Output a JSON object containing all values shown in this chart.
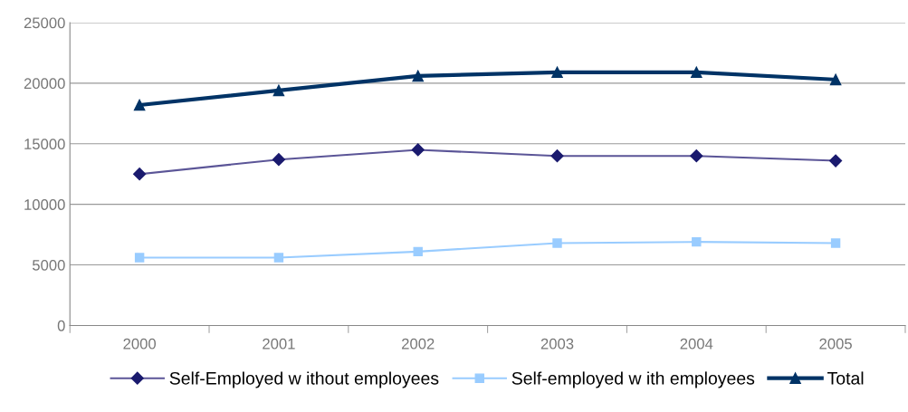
{
  "chart_data": {
    "type": "line",
    "categories": [
      "2000",
      "2001",
      "2002",
      "2003",
      "2004",
      "2005"
    ],
    "series": [
      {
        "name": "Self-Employed w ithout employees",
        "color": "#5b5597",
        "marker": "diamond",
        "values": [
          12500,
          13700,
          14500,
          14000,
          14000,
          13600
        ]
      },
      {
        "name": "Self-employed w ith employees",
        "color": "#99ccff",
        "marker": "square",
        "values": [
          5600,
          5600,
          6100,
          6800,
          6900,
          6800
        ]
      },
      {
        "name": "Total",
        "color": "#003366",
        "marker": "triangle",
        "values": [
          18200,
          19400,
          20600,
          20900,
          20900,
          20300
        ]
      }
    ],
    "ylim": [
      0,
      25000
    ],
    "yticks": [
      0,
      5000,
      10000,
      15000,
      20000,
      25000
    ],
    "grid": "y",
    "legend": "bottom",
    "line_style": "solid"
  }
}
